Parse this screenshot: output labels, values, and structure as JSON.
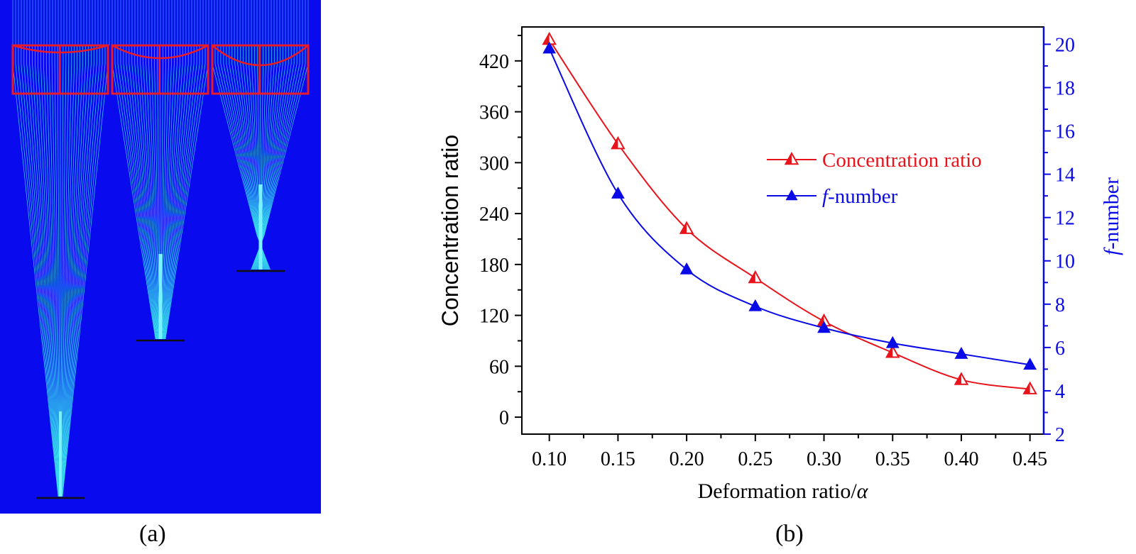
{
  "figure": {
    "caption_a": "(a)",
    "caption_b": "(b)"
  },
  "chart_data": {
    "type": "line",
    "title": "",
    "xlabel": "Deformation ratio/",
    "xlabel_symbol": "α",
    "ylabel_left": "Concentration ratio",
    "ylabel_right_italic": "f",
    "ylabel_right_rest": "-number",
    "x_ticks": [
      "0.10",
      "0.15",
      "0.20",
      "0.25",
      "0.30",
      "0.35",
      "0.40",
      "0.45"
    ],
    "y_left_ticks": [
      "0",
      "60",
      "120",
      "180",
      "240",
      "300",
      "360",
      "420"
    ],
    "y_right_ticks": [
      "2",
      "4",
      "6",
      "8",
      "10",
      "12",
      "14",
      "16",
      "18",
      "20"
    ],
    "xlim": [
      0.08,
      0.46
    ],
    "ylim_left": [
      -20,
      460
    ],
    "ylim_right": [
      2,
      20.8
    ],
    "legend_position": "upper-right",
    "x": [
      0.1,
      0.15,
      0.2,
      0.25,
      0.3,
      0.35,
      0.4,
      0.45
    ],
    "series": [
      {
        "name": "Concentration ratio",
        "axis": "left",
        "color": "#e8141b",
        "marker": "half-filled-triangle",
        "values": [
          445,
          322,
          222,
          164,
          113,
          76,
          44,
          33
        ]
      },
      {
        "name_italic": "f",
        "name_rest": "-number",
        "axis": "right",
        "color": "#0a0ae6",
        "marker": "filled-triangle",
        "values": [
          19.8,
          13.1,
          9.6,
          7.9,
          6.9,
          6.2,
          5.7,
          5.2
        ]
      }
    ]
  }
}
